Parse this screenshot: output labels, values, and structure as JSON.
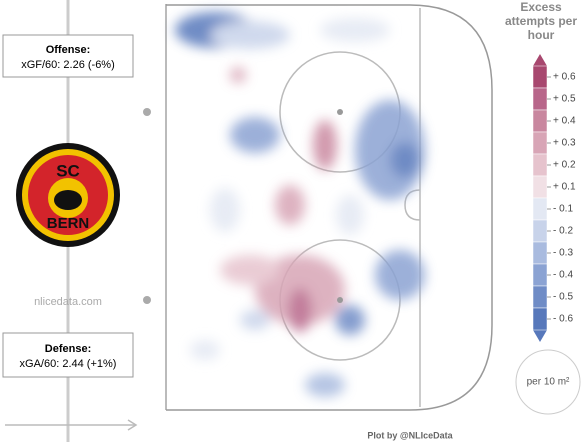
{
  "offense": {
    "title": "Offense:",
    "stat": "xGF/60: 2.26 (-6%)"
  },
  "defense": {
    "title": "Defense:",
    "stat": "xGA/60: 2.44 (+1%)"
  },
  "team_logo": {
    "top": "SC",
    "bottom": "BERN"
  },
  "watermark": "nlicedata.com",
  "legend": {
    "title": "Excess attempts per hour",
    "ticks": [
      "+ 0.6",
      "+ 0.5",
      "+ 0.4",
      "+ 0.3",
      "+ 0.2",
      "+ 0.1",
      "- 0.1",
      "- 0.2",
      "- 0.3",
      "- 0.4",
      "- 0.5",
      "- 0.6"
    ],
    "colors": [
      "#a8486f",
      "#b8668a",
      "#c9879f",
      "#d8a5b6",
      "#e6c3cd",
      "#f1e0e5",
      "#e3e8f3",
      "#c8d3ea",
      "#a9bbdf",
      "#8ba3d3",
      "#6f8cc6",
      "#5778bb"
    ]
  },
  "unit_note": "per 10 m²",
  "credit": "Plot by @NLIceData"
}
